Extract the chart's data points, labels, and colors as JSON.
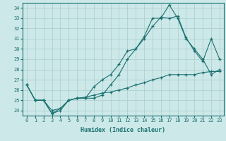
{
  "xlabel": "Humidex (Indice chaleur)",
  "bg_color": "#cce8e8",
  "grid_color": "#aacccc",
  "line_color": "#1a7070",
  "xlim": [
    -0.5,
    23.5
  ],
  "ylim": [
    23.5,
    34.5
  ],
  "yticks": [
    24,
    25,
    26,
    27,
    28,
    29,
    30,
    31,
    32,
    33,
    34
  ],
  "xticks": [
    0,
    1,
    2,
    3,
    4,
    5,
    6,
    7,
    8,
    9,
    10,
    11,
    12,
    13,
    14,
    15,
    16,
    17,
    18,
    19,
    20,
    21,
    22,
    23
  ],
  "line1_x": [
    0,
    1,
    2,
    3,
    4,
    5,
    6,
    7,
    8,
    9,
    10,
    11,
    12,
    13,
    14,
    15,
    16,
    17,
    18,
    19,
    20,
    21,
    22,
    23
  ],
  "line1_y": [
    26.5,
    25.0,
    25.0,
    23.7,
    24.0,
    25.0,
    25.2,
    25.2,
    25.2,
    25.5,
    26.5,
    27.5,
    29.0,
    30.0,
    31.2,
    33.0,
    33.0,
    34.3,
    33.0,
    31.0,
    30.0,
    29.0,
    27.5,
    28.0
  ],
  "line2_x": [
    0,
    1,
    2,
    3,
    4,
    5,
    6,
    7,
    8,
    9,
    10,
    11,
    12,
    13,
    14,
    15,
    16,
    17,
    18,
    19,
    20,
    21,
    22,
    23
  ],
  "line2_y": [
    26.5,
    25.0,
    25.0,
    24.0,
    24.2,
    25.0,
    25.2,
    25.3,
    25.5,
    25.7,
    25.8,
    26.0,
    26.2,
    26.5,
    26.7,
    27.0,
    27.2,
    27.5,
    27.5,
    27.5,
    27.5,
    27.7,
    27.8,
    27.8
  ],
  "line3_x": [
    0,
    1,
    2,
    3,
    4,
    5,
    6,
    7,
    8,
    9,
    10,
    11,
    12,
    13,
    14,
    15,
    16,
    17,
    18,
    19,
    20,
    21,
    22,
    23
  ],
  "line3_y": [
    26.5,
    25.0,
    25.0,
    23.7,
    24.2,
    25.0,
    25.2,
    25.2,
    26.3,
    27.0,
    27.5,
    28.5,
    29.8,
    30.0,
    31.0,
    32.2,
    33.1,
    33.0,
    33.2,
    31.1,
    29.8,
    28.8,
    31.0,
    29.0
  ]
}
